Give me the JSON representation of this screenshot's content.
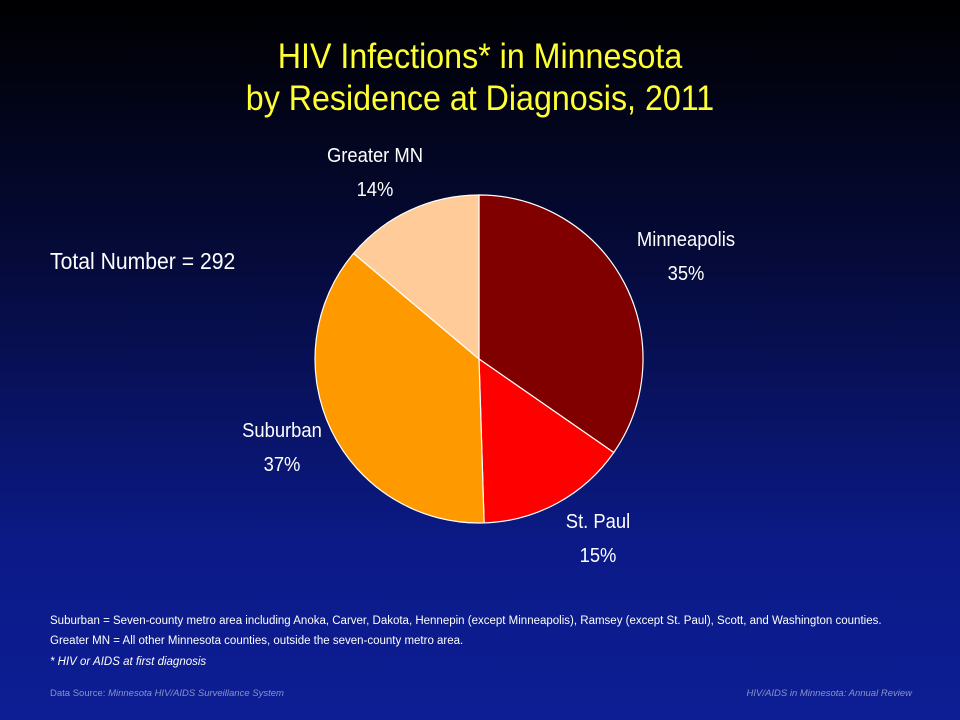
{
  "title": {
    "line1": "HIV Infections* in Minnesota",
    "line2": "by Residence at Diagnosis, 2011"
  },
  "total_label": "Total Number = 292",
  "chart_data": {
    "type": "pie",
    "title": "HIV Infections* in Minnesota by Residence at Diagnosis, 2011",
    "slices": [
      {
        "name": "Minneapolis",
        "value": 35,
        "label": "35%",
        "color": "#800000"
      },
      {
        "name": "St. Paul",
        "value": 15,
        "label": "15%",
        "color": "#ff0000"
      },
      {
        "name": "Suburban",
        "value": 37,
        "label": "37%",
        "color": "#ff9900"
      },
      {
        "name": "Greater MN",
        "value": 14,
        "label": "14%",
        "color": "#ffcc99"
      }
    ],
    "start_angle_deg": 0,
    "direction": "clockwise",
    "slice_border_color": "#ffffff"
  },
  "notes": {
    "suburban_definition": "Suburban = Seven-county metro area including Anoka, Carver, Dakota, Hennepin (except Minneapolis), Ramsey (except St. Paul), Scott, and Washington counties. Greater MN = All other Minnesota counties, outside the seven-county metro area.",
    "footnote": "* HIV or AIDS at first diagnosis"
  },
  "footer": {
    "source_prefix": "Data Source: ",
    "source_name": "Minnesota HIV/AIDS Surveillance System",
    "review": "HIV/AIDS in Minnesota: Annual Review"
  }
}
